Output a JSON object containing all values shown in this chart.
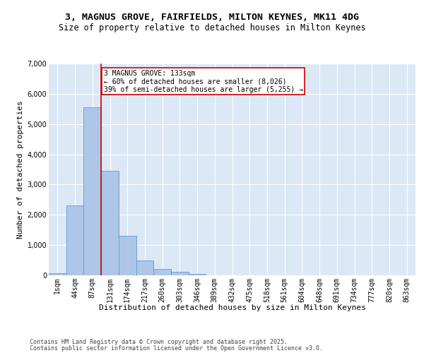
{
  "title_line1": "3, MAGNUS GROVE, FAIRFIELDS, MILTON KEYNES, MK11 4DG",
  "title_line2": "Size of property relative to detached houses in Milton Keynes",
  "xlabel": "Distribution of detached houses by size in Milton Keynes",
  "ylabel": "Number of detached properties",
  "bar_labels": [
    "1sqm",
    "44sqm",
    "87sqm",
    "131sqm",
    "174sqm",
    "217sqm",
    "260sqm",
    "303sqm",
    "346sqm",
    "389sqm",
    "432sqm",
    "475sqm",
    "518sqm",
    "561sqm",
    "604sqm",
    "648sqm",
    "691sqm",
    "734sqm",
    "777sqm",
    "820sqm",
    "863sqm"
  ],
  "bar_values": [
    75,
    2300,
    5550,
    3450,
    1300,
    500,
    200,
    120,
    55,
    0,
    0,
    0,
    0,
    0,
    0,
    0,
    0,
    0,
    0,
    0,
    0
  ],
  "bar_color": "#aec6e8",
  "bar_edge_color": "#5b9bd5",
  "background_color": "#dce8f5",
  "grid_color": "#ffffff",
  "vline_color": "#cc0000",
  "vline_pos": 2.5,
  "annotation_text": "3 MAGNUS GROVE: 133sqm\n← 60% of detached houses are smaller (8,026)\n39% of semi-detached houses are larger (5,255) →",
  "annotation_box_color": "#cc0000",
  "ylim": [
    0,
    7000
  ],
  "yticks": [
    0,
    1000,
    2000,
    3000,
    4000,
    5000,
    6000,
    7000
  ],
  "footer_line1": "Contains HM Land Registry data © Crown copyright and database right 2025.",
  "footer_line2": "Contains public sector information licensed under the Open Government Licence v3.0.",
  "title_fontsize": 9.5,
  "subtitle_fontsize": 8.5,
  "axis_label_fontsize": 8,
  "tick_fontsize": 7,
  "annotation_fontsize": 7,
  "footer_fontsize": 6
}
